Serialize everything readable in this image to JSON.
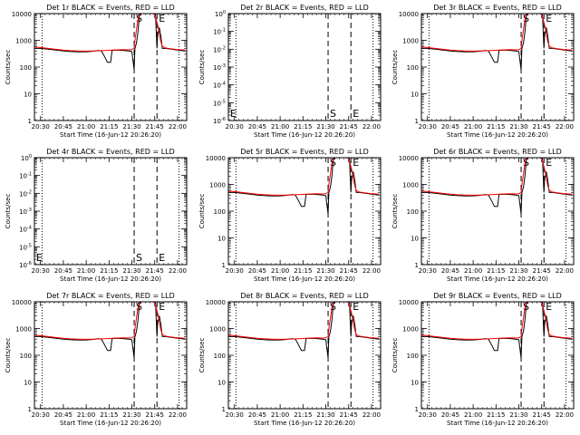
{
  "figure": {
    "ylabel": "Counts/sec",
    "xlabel": "Start Time (16-Jun-12 20:26:20)"
  },
  "colors": {
    "events": "#000000",
    "lld": "#ff0000"
  },
  "chart_data": [
    {
      "type": "line",
      "title": "Det 1r BLACK = Events, RED = LLD",
      "scale": "log",
      "ylim": [
        1,
        10000
      ],
      "ytick_labels": [
        "1",
        "10",
        "100",
        "1000",
        "10000"
      ],
      "has_data": true,
      "markers": {
        "s": "S",
        "e": "E"
      }
    },
    {
      "type": "line",
      "title": "Det 2r BLACK = Events, RED = LLD",
      "scale": "log",
      "ylim": [
        1e-06,
        1
      ],
      "ytick_labels": [
        "10^-6",
        "10^-5",
        "10^-4",
        "10^-3",
        "10^-2",
        "10^-1",
        "10^0"
      ],
      "has_data": false,
      "markers": {
        "s": "S",
        "e": "E"
      }
    },
    {
      "type": "line",
      "title": "Det 3r BLACK = Events, RED = LLD",
      "scale": "log",
      "ylim": [
        1,
        10000
      ],
      "ytick_labels": [
        "1",
        "10",
        "100",
        "1000",
        "10000"
      ],
      "has_data": true,
      "markers": {
        "s": "S",
        "e": "E"
      }
    },
    {
      "type": "line",
      "title": "Det 4r BLACK = Events, RED = LLD",
      "scale": "log",
      "ylim": [
        1e-06,
        1
      ],
      "ytick_labels": [
        "10^-6",
        "10^-5",
        "10^-4",
        "10^-3",
        "10^-2",
        "10^-1",
        "10^0"
      ],
      "has_data": false,
      "markers": {
        "s": "S",
        "e": "E"
      }
    },
    {
      "type": "line",
      "title": "Det 5r BLACK = Events, RED = LLD",
      "scale": "log",
      "ylim": [
        1,
        10000
      ],
      "ytick_labels": [
        "1",
        "10",
        "100",
        "1000",
        "10000"
      ],
      "has_data": true,
      "markers": {
        "s": "S",
        "e": "E"
      }
    },
    {
      "type": "line",
      "title": "Det 6r BLACK = Events, RED = LLD",
      "scale": "log",
      "ylim": [
        1,
        10000
      ],
      "ytick_labels": [
        "1",
        "10",
        "100",
        "1000",
        "10000"
      ],
      "has_data": true,
      "markers": {
        "s": "S",
        "e": "E"
      }
    },
    {
      "type": "line",
      "title": "Det 7r BLACK = Events, RED = LLD",
      "scale": "log",
      "ylim": [
        1,
        10000
      ],
      "ytick_labels": [
        "1",
        "10",
        "100",
        "1000",
        "10000"
      ],
      "has_data": true,
      "markers": {
        "s": "S",
        "e": "E"
      }
    },
    {
      "type": "line",
      "title": "Det 8r BLACK = Events, RED = LLD",
      "scale": "log",
      "ylim": [
        1,
        10000
      ],
      "ytick_labels": [
        "1",
        "10",
        "100",
        "1000",
        "10000"
      ],
      "has_data": true,
      "markers": {
        "s": "S",
        "e": "E"
      }
    },
    {
      "type": "line",
      "title": "Det 9r BLACK = Events, RED = LLD",
      "scale": "log",
      "ylim": [
        1,
        10000
      ],
      "ytick_labels": [
        "1",
        "10",
        "100",
        "1000",
        "10000"
      ],
      "has_data": true,
      "markers": {
        "s": "S",
        "e": "E"
      }
    }
  ],
  "shared_x": {
    "tick_labels": [
      "20:30",
      "20:45",
      "21:00",
      "21:15",
      "21:30",
      "21:45",
      "22:00"
    ],
    "tick_minutes": [
      30,
      45,
      60,
      75,
      90,
      105,
      120
    ],
    "xlim_minutes": [
      26,
      126
    ],
    "dotted_lines_minutes": [
      31,
      121
    ],
    "dashed_lines_minutes": [
      91.5,
      106.5
    ],
    "events": [
      [
        26,
        500
      ],
      [
        30,
        500
      ],
      [
        35,
        470
      ],
      [
        40,
        430
      ],
      [
        45,
        400
      ],
      [
        50,
        380
      ],
      [
        55,
        370
      ],
      [
        60,
        375
      ],
      [
        64,
        390
      ],
      [
        68,
        420
      ],
      [
        70,
        400
      ],
      [
        72,
        250
      ],
      [
        74,
        150
      ],
      [
        76,
        150
      ],
      [
        77,
        420
      ],
      [
        80,
        430
      ],
      [
        84,
        420
      ],
      [
        88,
        400
      ],
      [
        90,
        380
      ],
      [
        91.5,
        80
      ],
      [
        92,
        500
      ],
      [
        93,
        800
      ],
      [
        94,
        2000
      ],
      [
        95,
        9000
      ],
      [
        96,
        10000
      ],
      [
        104,
        10000
      ],
      [
        105.5,
        9000
      ],
      [
        106.5,
        500
      ],
      [
        107,
        1800
      ],
      [
        108,
        3000
      ],
      [
        109,
        1500
      ],
      [
        110,
        500
      ],
      [
        112,
        500
      ],
      [
        116,
        470
      ],
      [
        120,
        430
      ],
      [
        125,
        400
      ]
    ],
    "lld": [
      [
        26,
        560
      ],
      [
        30,
        540
      ],
      [
        35,
        500
      ],
      [
        40,
        460
      ],
      [
        45,
        430
      ],
      [
        50,
        410
      ],
      [
        55,
        400
      ],
      [
        60,
        395
      ],
      [
        65,
        400
      ],
      [
        70,
        410
      ],
      [
        75,
        425
      ],
      [
        80,
        440
      ],
      [
        85,
        450
      ],
      [
        88,
        440
      ],
      [
        90,
        450
      ],
      [
        91.5,
        500
      ],
      [
        92,
        1000
      ],
      [
        93,
        2500
      ],
      [
        94,
        6000
      ],
      [
        95,
        10000
      ],
      [
        104,
        10000
      ],
      [
        105,
        9000
      ],
      [
        106,
        6000
      ],
      [
        107,
        3500
      ],
      [
        108,
        1800
      ],
      [
        109,
        900
      ],
      [
        110,
        600
      ],
      [
        112,
        520
      ],
      [
        116,
        480
      ],
      [
        120,
        450
      ],
      [
        125,
        430
      ]
    ]
  }
}
